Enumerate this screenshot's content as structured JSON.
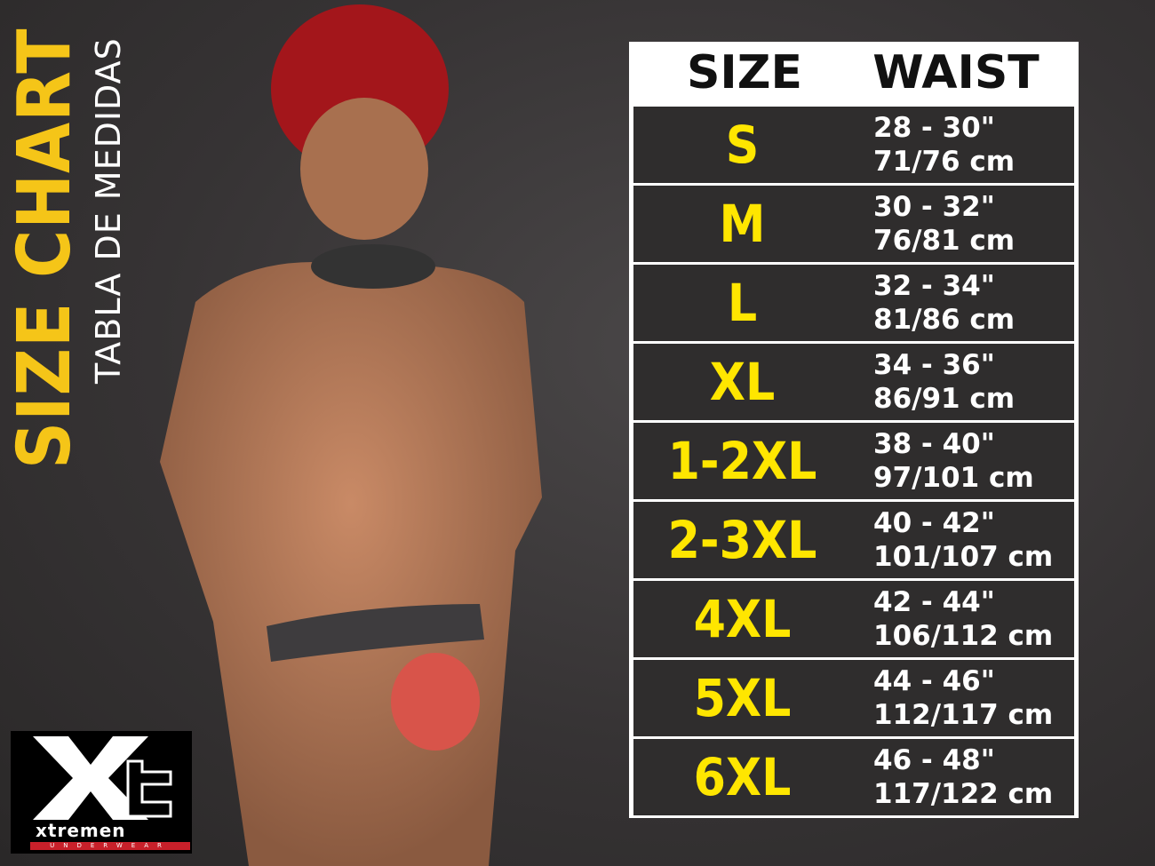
{
  "title": "SIZE CHART",
  "subtitle": "TABLA DE MEDIDAS",
  "colors": {
    "accent": "#f5c518",
    "size_text": "#ffe600",
    "row_bg": "#2f2d2d",
    "header_bg": "#ffffff"
  },
  "logo": {
    "mark": "Xt",
    "brand": "xtremen",
    "sub": "UNDERWEAR"
  },
  "table": {
    "headers": [
      "SIZE",
      "WAIST"
    ],
    "rows": [
      {
        "size": "S",
        "inches": "28 - 30\"",
        "cm": "71/76 cm"
      },
      {
        "size": "M",
        "inches": "30 - 32\"",
        "cm": "76/81 cm"
      },
      {
        "size": "L",
        "inches": "32 - 34\"",
        "cm": "81/86 cm"
      },
      {
        "size": "XL",
        "inches": "34 - 36\"",
        "cm": "86/91 cm"
      },
      {
        "size": "1-2XL",
        "inches": "38 - 40\"",
        "cm": "97/101 cm"
      },
      {
        "size": "2-3XL",
        "inches": "40 - 42\"",
        "cm": "101/107 cm"
      },
      {
        "size": "4XL",
        "inches": "42 - 44\"",
        "cm": "106/112 cm"
      },
      {
        "size": "5XL",
        "inches": "44 - 46\"",
        "cm": "112/117 cm"
      },
      {
        "size": "6XL",
        "inches": "46 - 48\"",
        "cm": "117/122 cm"
      }
    ]
  }
}
